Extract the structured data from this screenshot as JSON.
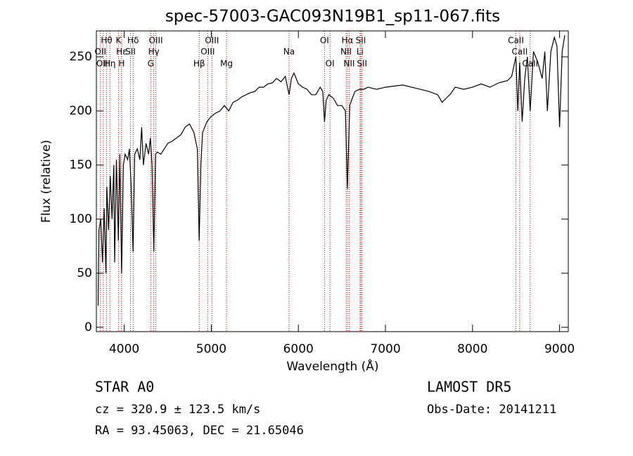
{
  "chart_data": {
    "type": "line",
    "title": "spec-57003-GAC093N19B1_sp11-067.fits",
    "x_label": "Wavelength (Å)",
    "y_label": "Flux (relative)",
    "xlim": [
      3680,
      9100
    ],
    "ylim": [
      -4,
      274
    ],
    "xticks": [
      4000,
      5000,
      6000,
      7000,
      8000,
      9000
    ],
    "yticks": [
      0,
      50,
      100,
      150,
      200,
      250
    ],
    "color": "#000000",
    "line_color": "#cc0000",
    "x": [
      3700,
      3710,
      3730,
      3750,
      3770,
      3790,
      3800,
      3820,
      3840,
      3860,
      3880,
      3890,
      3910,
      3933,
      3950,
      3970,
      3990,
      4010,
      4040,
      4060,
      4080,
      4102,
      4120,
      4150,
      4180,
      4200,
      4220,
      4250,
      4280,
      4300,
      4320,
      4340,
      4360,
      4380,
      4420,
      4460,
      4500,
      4550,
      4600,
      4650,
      4700,
      4750,
      4800,
      4840,
      4861,
      4880,
      4900,
      4950,
      5000,
      5050,
      5100,
      5150,
      5200,
      5250,
      5300,
      5350,
      5400,
      5450,
      5500,
      5550,
      5600,
      5650,
      5700,
      5750,
      5800,
      5850,
      5893,
      5920,
      5950,
      6000,
      6050,
      6100,
      6150,
      6200,
      6250,
      6280,
      6300,
      6320,
      6350,
      6400,
      6450,
      6500,
      6540,
      6563,
      6590,
      6620,
      6650,
      6700,
      6750,
      6800,
      6900,
      7000,
      7100,
      7200,
      7300,
      7400,
      7500,
      7600,
      7650,
      7700,
      7750,
      7800,
      7900,
      8000,
      8100,
      8200,
      8300,
      8400,
      8450,
      8498,
      8520,
      8542,
      8570,
      8600,
      8630,
      8662,
      8700,
      8750,
      8800,
      8830,
      8860,
      8900,
      8940,
      8970,
      9000,
      9030,
      9060
    ],
    "values": [
      20,
      90,
      100,
      60,
      110,
      50,
      130,
      90,
      140,
      100,
      150,
      60,
      155,
      80,
      160,
      50,
      150,
      160,
      155,
      165,
      130,
      70,
      160,
      165,
      155,
      185,
      150,
      170,
      160,
      175,
      150,
      70,
      160,
      162,
      160,
      165,
      170,
      172,
      175,
      178,
      185,
      188,
      180,
      165,
      80,
      150,
      180,
      190,
      195,
      198,
      200,
      205,
      200,
      208,
      210,
      213,
      215,
      217,
      218,
      222,
      222,
      225,
      226,
      230,
      227,
      232,
      215,
      230,
      235,
      225,
      222,
      220,
      215,
      215,
      222,
      218,
      190,
      210,
      215,
      212,
      205,
      205,
      200,
      128,
      205,
      212,
      218,
      220,
      220,
      222,
      220,
      222,
      223,
      224,
      222,
      220,
      218,
      215,
      208,
      212,
      216,
      222,
      220,
      222,
      225,
      222,
      226,
      228,
      232,
      250,
      200,
      245,
      190,
      230,
      250,
      200,
      255,
      245,
      230,
      255,
      200,
      255,
      268,
      260,
      185,
      255,
      270
    ],
    "line_label_rows": [
      [
        {
          "label": "Hθ",
          "x": 3798
        },
        {
          "label": "K",
          "x": 3934
        },
        {
          "label": "Hδ",
          "x": 4102
        },
        {
          "label": "OIII",
          "x": 4363
        },
        {
          "label": "OIII",
          "x": 5007
        },
        {
          "label": "OI",
          "x": 6300
        },
        {
          "label": "Hα",
          "x": 6563
        },
        {
          "label": "SII",
          "x": 6717
        },
        {
          "label": "CaII",
          "x": 8498
        }
      ],
      [
        {
          "label": "OII",
          "x": 3727
        },
        {
          "label": "Hε",
          "x": 3970
        },
        {
          "label": "SII",
          "x": 4072
        },
        {
          "label": "Hγ",
          "x": 4340
        },
        {
          "label": "OIII",
          "x": 4959
        },
        {
          "label": "Na",
          "x": 5893
        },
        {
          "label": "NII",
          "x": 6548
        },
        {
          "label": "Li",
          "x": 6708
        },
        {
          "label": "CaII",
          "x": 8542
        }
      ],
      [
        {
          "label": "OIII",
          "x": 3760
        },
        {
          "label": "Hη",
          "x": 3835
        },
        {
          "label": "H",
          "x": 3970
        },
        {
          "label": "G",
          "x": 4305
        },
        {
          "label": "Hβ",
          "x": 4861
        },
        {
          "label": "Mg",
          "x": 5175
        },
        {
          "label": "OI",
          "x": 6363
        },
        {
          "label": "NII",
          "x": 6583
        },
        {
          "label": "SII",
          "x": 6731
        },
        {
          "label": "CaII",
          "x": 8662
        }
      ]
    ],
    "info": {
      "class": "STAR    A0",
      "survey": "LAMOST  DR5",
      "cz": "cz = 320.9 ± 123.5 km/s",
      "obs_date": "Obs-Date: 20141211",
      "coords": "RA =  93.45063, DEC =  21.65046"
    }
  }
}
